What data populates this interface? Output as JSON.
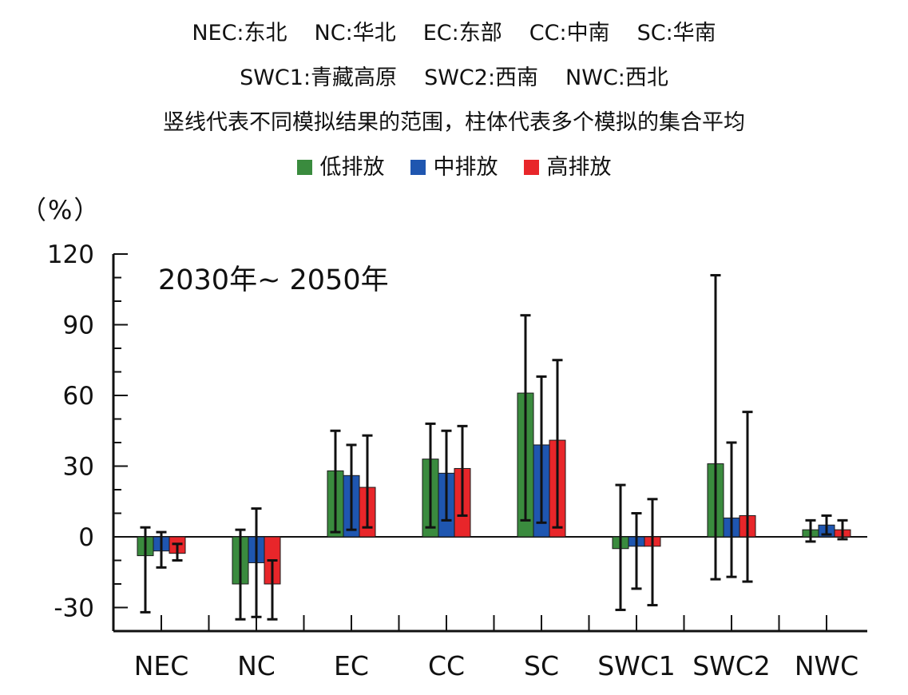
{
  "header": {
    "line1": [
      {
        "code": "NEC",
        "sep": ":",
        "name": "东北"
      },
      {
        "code": "NC",
        "sep": ":",
        "name": "华北"
      },
      {
        "code": "EC",
        "sep": ":",
        "name": "东部"
      },
      {
        "code": "CC",
        "sep": ":",
        "name": "中南"
      },
      {
        "code": "SC",
        "sep": ":",
        "name": "华南"
      }
    ],
    "line2": [
      {
        "code": "SWC1",
        "sep": ":",
        "name": "青藏高原"
      },
      {
        "code": "SWC2",
        "sep": ":",
        "name": "西南"
      },
      {
        "code": "NWC",
        "sep": ":",
        "name": "西北"
      }
    ],
    "note": "竖线代表不同模拟结果的范围，柱体代表多个模拟的集合平均"
  },
  "colors": {
    "low": "#3a8b3e",
    "mid": "#1f56b0",
    "high": "#e8262a",
    "axis": "#111111"
  },
  "chart_data": {
    "type": "bar",
    "title": "2030年~ 2050年",
    "ylabel": "（%）",
    "xlabel": "",
    "ylim": [
      -40,
      120
    ],
    "yticks": [
      -30,
      0,
      30,
      60,
      90,
      120
    ],
    "categories": [
      "NEC",
      "NC",
      "EC",
      "CC",
      "SC",
      "SWC1",
      "SWC2",
      "NWC"
    ],
    "series": [
      {
        "name": "低排放",
        "color": "#3a8b3e",
        "values": [
          -8,
          -20,
          28,
          33,
          61,
          -5,
          31,
          3
        ],
        "range": [
          [
            -32,
            4
          ],
          [
            -35,
            3
          ],
          [
            2,
            45
          ],
          [
            4,
            48
          ],
          [
            7,
            94
          ],
          [
            -31,
            22
          ],
          [
            -18,
            111
          ],
          [
            -2,
            7
          ]
        ]
      },
      {
        "name": "中排放",
        "color": "#1f56b0",
        "values": [
          -6,
          -11,
          26,
          27,
          39,
          -4,
          8,
          5
        ],
        "range": [
          [
            -13,
            2
          ],
          [
            -34,
            12
          ],
          [
            3,
            39
          ],
          [
            7,
            45
          ],
          [
            6,
            68
          ],
          [
            -22,
            10
          ],
          [
            -17,
            40
          ],
          [
            1,
            9
          ]
        ]
      },
      {
        "name": "高排放",
        "color": "#e8262a",
        "values": [
          -7,
          -20,
          21,
          29,
          41,
          -4,
          9,
          3
        ],
        "range": [
          [
            -10,
            -3
          ],
          [
            -35,
            -10
          ],
          [
            4,
            43
          ],
          [
            9,
            47
          ],
          [
            4,
            75
          ],
          [
            -29,
            16
          ],
          [
            -19,
            53
          ],
          [
            -1,
            7
          ]
        ]
      }
    ]
  }
}
